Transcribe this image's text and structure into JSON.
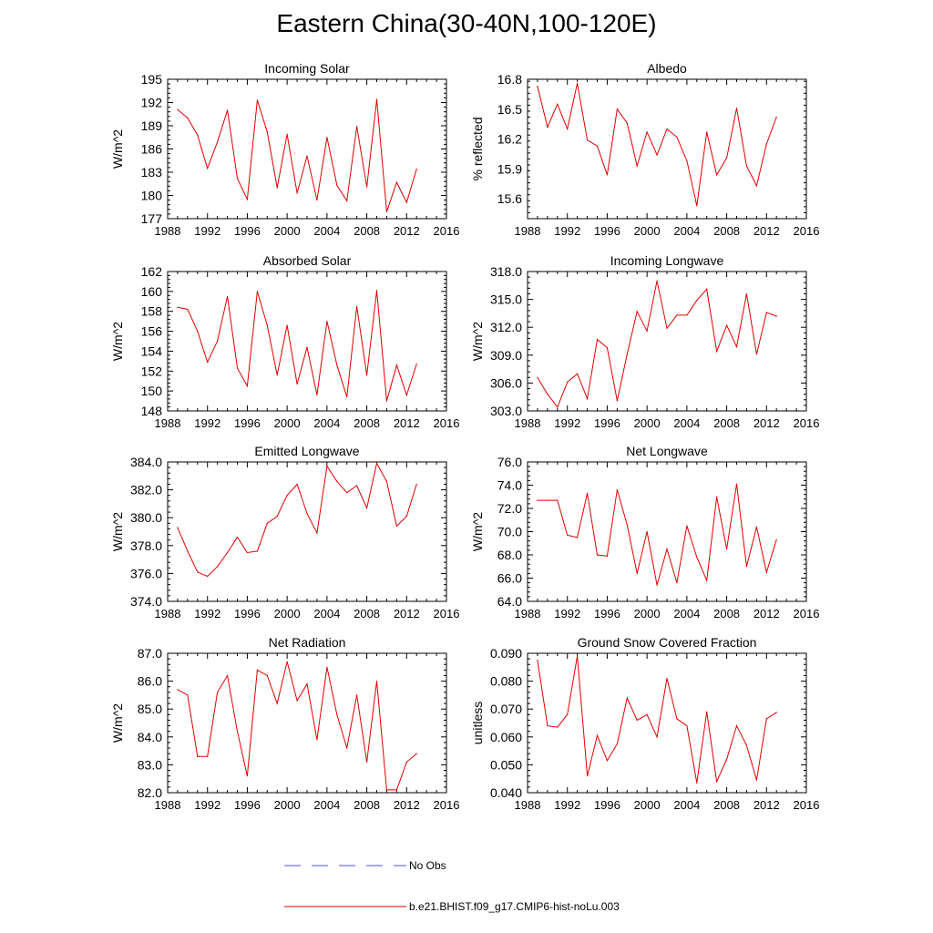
{
  "title": "Eastern China(30-40N,100-120E)",
  "colors": {
    "series": "#e00000",
    "obs": "#5050d0",
    "axis": "#000000"
  },
  "legend": {
    "items": [
      {
        "label": "No Obs",
        "style": "dashed",
        "color": "#5050d0"
      },
      {
        "label": "b.e21.BHIST.f09_g17.CMIP6-hist-noLu.003",
        "style": "solid",
        "color": "#e00000"
      }
    ]
  },
  "chart_data": [
    {
      "type": "line",
      "title": "Incoming Solar",
      "ylabel": "W/m^2",
      "xlim": [
        1988,
        2016
      ],
      "ylim": [
        177,
        195
      ],
      "xticks": [
        "1988",
        "1992",
        "1996",
        "2000",
        "2004",
        "2008",
        "2012",
        "2016"
      ],
      "yticks": [
        "177",
        "180",
        "183",
        "186",
        "189",
        "192",
        "195"
      ],
      "series": [
        {
          "x": [
            1989,
            1990,
            1991,
            1992,
            1993,
            1994,
            1995,
            1996,
            1997,
            1998,
            1999,
            2000,
            2001,
            2002,
            2003,
            2004,
            2005,
            2006,
            2007,
            2008,
            2009,
            2010,
            2011,
            2012,
            2013
          ],
          "values": [
            191.1,
            190.0,
            187.8,
            183.5,
            186.9,
            191.0,
            182.2,
            179.5,
            192.3,
            188.2,
            181.0,
            187.9,
            180.3,
            185.1,
            179.4,
            187.5,
            181.3,
            179.3,
            188.9,
            181.1,
            192.4,
            177.9,
            181.7,
            179.1,
            183.4
          ]
        }
      ]
    },
    {
      "type": "line",
      "title": "Albedo",
      "ylabel": "% reflected",
      "xlim": [
        1988,
        2016
      ],
      "ylim": [
        15.4,
        16.8
      ],
      "xticks": [
        "1988",
        "1992",
        "1996",
        "2000",
        "2004",
        "2008",
        "2012",
        "2016"
      ],
      "yticks": [
        "15.6",
        "15.9",
        "16.2",
        "16.5",
        "16.8"
      ],
      "series": [
        {
          "x": [
            1989,
            1990,
            1991,
            1992,
            1993,
            1994,
            1995,
            1996,
            1997,
            1998,
            1999,
            2000,
            2001,
            2002,
            2003,
            2004,
            2005,
            2006,
            2007,
            2008,
            2009,
            2010,
            2011,
            2012,
            2013
          ],
          "values": [
            16.73,
            16.32,
            16.55,
            16.3,
            16.76,
            16.19,
            16.13,
            15.84,
            16.5,
            16.36,
            15.93,
            16.27,
            16.04,
            16.3,
            16.22,
            15.98,
            15.53,
            16.27,
            15.84,
            16.01,
            16.51,
            15.93,
            15.73,
            16.15,
            16.42
          ]
        }
      ]
    },
    {
      "type": "line",
      "title": "Absorbed Solar",
      "ylabel": "W/m^2",
      "xlim": [
        1988,
        2016
      ],
      "ylim": [
        148,
        162
      ],
      "xticks": [
        "1988",
        "1992",
        "1996",
        "2000",
        "2004",
        "2008",
        "2012",
        "2016"
      ],
      "yticks": [
        "148",
        "150",
        "152",
        "154",
        "156",
        "158",
        "160",
        "162"
      ],
      "series": [
        {
          "x": [
            1989,
            1990,
            1991,
            1992,
            1993,
            1994,
            1995,
            1996,
            1997,
            1998,
            1999,
            2000,
            2001,
            2002,
            2003,
            2004,
            2005,
            2006,
            2007,
            2008,
            2009,
            2010,
            2011,
            2012,
            2013
          ],
          "values": [
            158.4,
            158.2,
            156.0,
            152.9,
            155.0,
            159.5,
            152.3,
            150.5,
            160.0,
            156.6,
            151.6,
            156.6,
            150.7,
            154.4,
            149.6,
            157.0,
            152.6,
            149.4,
            158.5,
            151.6,
            160.1,
            149.0,
            152.6,
            149.6,
            152.7
          ]
        }
      ]
    },
    {
      "type": "line",
      "title": "Incoming Longwave",
      "ylabel": "W/m^2",
      "xlim": [
        1988,
        2016
      ],
      "ylim": [
        303,
        318
      ],
      "xticks": [
        "1988",
        "1992",
        "1996",
        "2000",
        "2004",
        "2008",
        "2012",
        "2016"
      ],
      "yticks": [
        "303.0",
        "306.0",
        "309.0",
        "312.0",
        "315.0",
        "318.0"
      ],
      "series": [
        {
          "x": [
            1989,
            1990,
            1991,
            1992,
            1993,
            1994,
            1995,
            1996,
            1997,
            1998,
            1999,
            2000,
            2001,
            2002,
            2003,
            2004,
            2005,
            2006,
            2007,
            2008,
            2009,
            2010,
            2011,
            2012,
            2013
          ],
          "values": [
            306.6,
            304.8,
            303.4,
            306.1,
            307.0,
            304.3,
            310.7,
            309.8,
            304.1,
            309.1,
            313.7,
            311.6,
            317.0,
            311.9,
            313.3,
            313.3,
            314.9,
            316.1,
            309.4,
            312.2,
            309.9,
            315.6,
            309.1,
            313.6,
            313.2
          ]
        }
      ]
    },
    {
      "type": "line",
      "title": "Emitted Longwave",
      "ylabel": "W/m^2",
      "xlim": [
        1988,
        2016
      ],
      "ylim": [
        374,
        384
      ],
      "xticks": [
        "1988",
        "1992",
        "1996",
        "2000",
        "2004",
        "2008",
        "2012",
        "2016"
      ],
      "yticks": [
        "374.0",
        "376.0",
        "378.0",
        "380.0",
        "382.0",
        "384.0"
      ],
      "series": [
        {
          "x": [
            1989,
            1990,
            1991,
            1992,
            1993,
            1994,
            1995,
            1996,
            1997,
            1998,
            1999,
            2000,
            2001,
            2002,
            2003,
            2004,
            2005,
            2006,
            2007,
            2008,
            2009,
            2010,
            2011,
            2012,
            2013
          ],
          "values": [
            379.3,
            377.6,
            376.1,
            375.8,
            376.5,
            377.5,
            378.6,
            377.5,
            377.6,
            379.6,
            380.1,
            381.6,
            382.4,
            380.3,
            378.9,
            383.7,
            382.6,
            381.8,
            382.3,
            380.7,
            383.9,
            382.6,
            379.4,
            380.1,
            382.4
          ]
        }
      ]
    },
    {
      "type": "line",
      "title": "Net Longwave",
      "ylabel": "W/m^2",
      "xlim": [
        1988,
        2016
      ],
      "ylim": [
        64,
        76
      ],
      "xticks": [
        "1988",
        "1992",
        "1996",
        "2000",
        "2004",
        "2008",
        "2012",
        "2016"
      ],
      "yticks": [
        "64.0",
        "66.0",
        "68.0",
        "70.0",
        "72.0",
        "74.0",
        "76.0"
      ],
      "series": [
        {
          "x": [
            1989,
            1990,
            1991,
            1992,
            1993,
            1994,
            1995,
            1996,
            1997,
            1998,
            1999,
            2000,
            2001,
            2002,
            2003,
            2004,
            2005,
            2006,
            2007,
            2008,
            2009,
            2010,
            2011,
            2012,
            2013
          ],
          "values": [
            72.7,
            72.7,
            72.7,
            69.7,
            69.5,
            73.3,
            68.0,
            67.9,
            73.6,
            70.6,
            66.4,
            70.0,
            65.4,
            68.5,
            65.6,
            70.5,
            67.8,
            65.8,
            73.0,
            68.5,
            74.1,
            67.0,
            70.4,
            66.5,
            69.3
          ]
        }
      ]
    },
    {
      "type": "line",
      "title": "Net Radiation",
      "ylabel": "W/m^2",
      "xlim": [
        1988,
        2016
      ],
      "ylim": [
        82,
        87
      ],
      "xticks": [
        "1988",
        "1992",
        "1996",
        "2000",
        "2004",
        "2008",
        "2012",
        "2016"
      ],
      "yticks": [
        "82.0",
        "83.0",
        "84.0",
        "85.0",
        "86.0",
        "87.0"
      ],
      "series": [
        {
          "x": [
            1989,
            1990,
            1991,
            1992,
            1993,
            1994,
            1995,
            1996,
            1997,
            1998,
            1999,
            2000,
            2001,
            2002,
            2003,
            2004,
            2005,
            2006,
            2007,
            2008,
            2009,
            2010,
            2011,
            2012,
            2013
          ],
          "values": [
            85.7,
            85.5,
            83.3,
            83.3,
            85.6,
            86.2,
            84.2,
            82.6,
            86.4,
            86.2,
            85.2,
            86.7,
            85.3,
            85.9,
            83.9,
            86.5,
            84.8,
            83.6,
            85.5,
            83.1,
            86.0,
            82.1,
            82.1,
            83.1,
            83.4
          ]
        }
      ]
    },
    {
      "type": "line",
      "title": "Ground Snow Covered Fraction",
      "ylabel": "unitless",
      "xlim": [
        1988,
        2016
      ],
      "ylim": [
        0.04,
        0.09
      ],
      "xticks": [
        "1988",
        "1992",
        "1996",
        "2000",
        "2004",
        "2008",
        "2012",
        "2016"
      ],
      "yticks": [
        "0.040",
        "0.050",
        "0.060",
        "0.070",
        "0.080",
        "0.090"
      ],
      "series": [
        {
          "x": [
            1989,
            1990,
            1991,
            1992,
            1993,
            1994,
            1995,
            1996,
            1997,
            1998,
            1999,
            2000,
            2001,
            2002,
            2003,
            2004,
            2005,
            2006,
            2007,
            2008,
            2009,
            2010,
            2011,
            2012,
            2013
          ],
          "values": [
            0.0875,
            0.064,
            0.0635,
            0.068,
            0.089,
            0.046,
            0.0605,
            0.0515,
            0.0575,
            0.074,
            0.066,
            0.068,
            0.06,
            0.081,
            0.0665,
            0.064,
            0.0435,
            0.069,
            0.044,
            0.052,
            0.064,
            0.057,
            0.0445,
            0.0665,
            0.0688
          ]
        }
      ]
    }
  ]
}
